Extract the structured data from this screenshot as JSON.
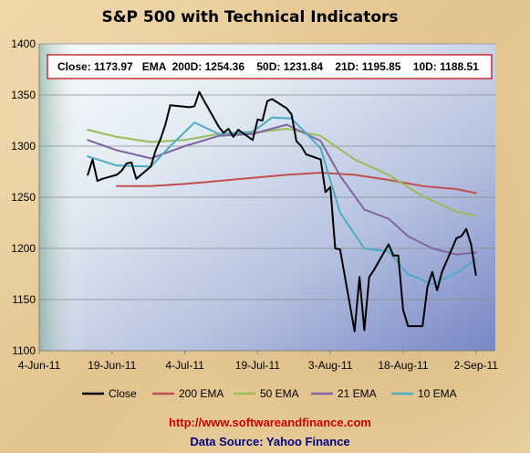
{
  "chart_data": {
    "type": "line",
    "title": "S&P 500 with Technical Indicators",
    "xlabel": "",
    "ylabel": "",
    "ylim": [
      1100,
      1400
    ],
    "xlim": [
      "2011-06-04",
      "2011-09-06"
    ],
    "x_tick_labels": [
      "4-Jun-11",
      "19-Jun-11",
      "4-Jul-11",
      "19-Jul-11",
      "3-Aug-11",
      "18-Aug-11",
      "2-Sep-11"
    ],
    "y_tick_labels": [
      "1100",
      "1150",
      "1200",
      "1250",
      "1300",
      "1350",
      "1400"
    ],
    "grid": "horizontal",
    "legend_position": "bottom",
    "info_box": "Close: 1173.97   EMA  200D: 1254.36    50D: 1231.84    21D: 1195.85    10D: 1188.51",
    "series": [
      {
        "name": "Close",
        "color": "#000000",
        "points": [
          [
            "2011-06-14",
            1272
          ],
          [
            "2011-06-15",
            1287
          ],
          [
            "2011-06-16",
            1266
          ],
          [
            "2011-06-17",
            1268
          ],
          [
            "2011-06-20",
            1272
          ],
          [
            "2011-06-21",
            1276
          ],
          [
            "2011-06-22",
            1283
          ],
          [
            "2011-06-23",
            1284
          ],
          [
            "2011-06-24",
            1268
          ],
          [
            "2011-06-27",
            1280
          ],
          [
            "2011-06-28",
            1296
          ],
          [
            "2011-06-29",
            1307
          ],
          [
            "2011-06-30",
            1321
          ],
          [
            "2011-07-01",
            1340
          ],
          [
            "2011-07-05",
            1338
          ],
          [
            "2011-07-06",
            1339
          ],
          [
            "2011-07-07",
            1353
          ],
          [
            "2011-07-08",
            1344
          ],
          [
            "2011-07-11",
            1319
          ],
          [
            "2011-07-12",
            1313
          ],
          [
            "2011-07-13",
            1317
          ],
          [
            "2011-07-14",
            1309
          ],
          [
            "2011-07-15",
            1316
          ],
          [
            "2011-07-18",
            1306
          ],
          [
            "2011-07-19",
            1326
          ],
          [
            "2011-07-20",
            1325
          ],
          [
            "2011-07-21",
            1344
          ],
          [
            "2011-07-22",
            1346
          ],
          [
            "2011-07-25",
            1337
          ],
          [
            "2011-07-26",
            1331
          ],
          [
            "2011-07-27",
            1305
          ],
          [
            "2011-07-28",
            1300
          ],
          [
            "2011-07-29",
            1292
          ],
          [
            "2011-08-01",
            1287
          ],
          [
            "2011-08-02",
            1255
          ],
          [
            "2011-08-03",
            1260
          ],
          [
            "2011-08-04",
            1200
          ],
          [
            "2011-08-05",
            1199
          ],
          [
            "2011-08-08",
            1119
          ],
          [
            "2011-08-09",
            1172
          ],
          [
            "2011-08-10",
            1120
          ],
          [
            "2011-08-11",
            1172
          ],
          [
            "2011-08-12",
            1179
          ],
          [
            "2011-08-15",
            1204
          ],
          [
            "2011-08-16",
            1193
          ],
          [
            "2011-08-17",
            1193
          ],
          [
            "2011-08-18",
            1140
          ],
          [
            "2011-08-19",
            1124
          ],
          [
            "2011-08-22",
            1124
          ],
          [
            "2011-08-23",
            1162
          ],
          [
            "2011-08-24",
            1177
          ],
          [
            "2011-08-25",
            1159
          ],
          [
            "2011-08-26",
            1177
          ],
          [
            "2011-08-29",
            1210
          ],
          [
            "2011-08-30",
            1212
          ],
          [
            "2011-08-31",
            1219
          ],
          [
            "2011-09-01",
            1204
          ],
          [
            "2011-09-02",
            1174
          ]
        ]
      },
      {
        "name": "200 EMA",
        "color": "#c0504d",
        "points": [
          [
            "2011-06-20",
            1261
          ],
          [
            "2011-06-27",
            1261
          ],
          [
            "2011-07-04",
            1263
          ],
          [
            "2011-07-11",
            1266
          ],
          [
            "2011-07-18",
            1269
          ],
          [
            "2011-07-25",
            1272
          ],
          [
            "2011-08-01",
            1274
          ],
          [
            "2011-08-08",
            1272
          ],
          [
            "2011-08-15",
            1267
          ],
          [
            "2011-08-22",
            1261
          ],
          [
            "2011-08-29",
            1258
          ],
          [
            "2011-09-02",
            1254
          ]
        ]
      },
      {
        "name": "50 EMA",
        "color": "#9bbb59",
        "points": [
          [
            "2011-06-14",
            1316
          ],
          [
            "2011-06-20",
            1309
          ],
          [
            "2011-06-27",
            1304
          ],
          [
            "2011-07-04",
            1306
          ],
          [
            "2011-07-11",
            1312
          ],
          [
            "2011-07-18",
            1313
          ],
          [
            "2011-07-25",
            1317
          ],
          [
            "2011-08-01",
            1310
          ],
          [
            "2011-08-08",
            1287
          ],
          [
            "2011-08-15",
            1272
          ],
          [
            "2011-08-22",
            1251
          ],
          [
            "2011-08-29",
            1236
          ],
          [
            "2011-09-02",
            1232
          ]
        ]
      },
      {
        "name": "21 EMA",
        "color": "#8064a2",
        "points": [
          [
            "2011-06-14",
            1306
          ],
          [
            "2011-06-20",
            1296
          ],
          [
            "2011-06-27",
            1288
          ],
          [
            "2011-07-04",
            1300
          ],
          [
            "2011-07-11",
            1310
          ],
          [
            "2011-07-18",
            1312
          ],
          [
            "2011-07-25",
            1321
          ],
          [
            "2011-08-01",
            1305
          ],
          [
            "2011-08-05",
            1271
          ],
          [
            "2011-08-10",
            1238
          ],
          [
            "2011-08-15",
            1229
          ],
          [
            "2011-08-19",
            1212
          ],
          [
            "2011-08-24",
            1200
          ],
          [
            "2011-08-29",
            1194
          ],
          [
            "2011-09-02",
            1196
          ]
        ]
      },
      {
        "name": "10 EMA",
        "color": "#4bacc6",
        "points": [
          [
            "2011-06-14",
            1290
          ],
          [
            "2011-06-20",
            1281
          ],
          [
            "2011-06-27",
            1280
          ],
          [
            "2011-07-01",
            1300
          ],
          [
            "2011-07-06",
            1323
          ],
          [
            "2011-07-11",
            1312
          ],
          [
            "2011-07-18",
            1314
          ],
          [
            "2011-07-22",
            1328
          ],
          [
            "2011-07-26",
            1327
          ],
          [
            "2011-08-01",
            1298
          ],
          [
            "2011-08-05",
            1235
          ],
          [
            "2011-08-10",
            1200
          ],
          [
            "2011-08-15",
            1197
          ],
          [
            "2011-08-19",
            1175
          ],
          [
            "2011-08-24",
            1165
          ],
          [
            "2011-08-29",
            1176
          ],
          [
            "2011-09-02",
            1189
          ]
        ]
      }
    ]
  },
  "footer": {
    "url": "http://www.softwareandfinance.com",
    "source": "Data Source: Yahoo Finance"
  }
}
